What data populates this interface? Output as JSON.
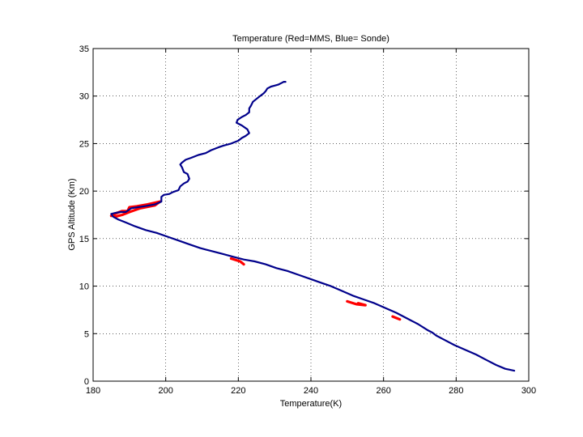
{
  "chart_data": {
    "type": "line",
    "title": "Temperature (Red=MMS, Blue= Sonde)",
    "xlabel": "Temperature(K)",
    "ylabel": "GPS Altitude (Km)",
    "xlim": [
      180,
      300
    ],
    "ylim": [
      0,
      35
    ],
    "xticks": [
      180,
      200,
      220,
      240,
      260,
      280,
      300
    ],
    "yticks": [
      0,
      5,
      10,
      15,
      20,
      25,
      30,
      35
    ],
    "grid": true,
    "series": [
      {
        "color": "#ff0000",
        "x": [
          185.0,
          186.5,
          188.0,
          189.5,
          190.0,
          192.0,
          195.0,
          198.5,
          197.0,
          193.0,
          190.0,
          188.0,
          186.0
        ],
        "y": [
          17.4,
          17.7,
          17.9,
          17.9,
          18.3,
          18.4,
          18.6,
          18.9,
          18.5,
          18.2,
          17.8,
          17.5,
          17.3
        ]
      },
      {
        "color": "#ff0000",
        "x": [
          218.0,
          220.5,
          221.5
        ],
        "y": [
          12.9,
          12.6,
          12.3
        ]
      },
      {
        "color": "#ff0000",
        "x": [
          250.0,
          252.5,
          255.0,
          253.0
        ],
        "y": [
          8.4,
          8.1,
          8.0,
          8.2
        ]
      },
      {
        "color": "#ff0000",
        "x": [
          262.5,
          264.5
        ],
        "y": [
          6.8,
          6.5
        ]
      },
      {
        "color": "#00008b",
        "x": [
          296.0,
          293.5,
          291.0,
          288.5,
          285.5,
          282.5,
          279.5,
          276.5,
          274.5,
          273.5,
          272.0,
          269.5,
          266.5,
          263.5,
          260.5,
          257.5,
          254.5,
          251.5,
          248.5,
          245.5,
          242.5,
          239.5,
          236.5,
          233.5,
          230.5,
          227.5,
          224.5,
          221.5,
          218.5,
          215.5,
          212.5,
          209.5,
          206.5,
          203.5,
          200.5,
          197.5,
          194.5,
          191.5,
          189.0,
          187.0,
          185.5,
          185.0,
          186.0,
          187.5,
          189.0,
          190.5,
          194.0,
          197.0,
          198.8,
          198.8,
          199.5,
          201.0,
          202.0,
          203.5,
          204.0,
          205.0,
          206.0,
          206.5,
          206.0,
          205.0,
          204.5,
          204.0,
          204.5,
          205.5,
          207.0,
          209.0,
          211.0,
          212.5,
          214.5,
          216.0,
          218.0,
          220.0,
          221.0,
          222.0,
          223.0,
          222.5,
          221.0,
          219.5,
          219.8,
          221.0,
          222.0,
          223.0,
          223.0,
          223.5,
          224.0,
          225.0,
          226.0,
          227.0,
          227.5,
          228.0,
          229.0,
          230.0,
          231.0,
          232.0,
          232.5,
          233.0
        ],
        "y": [
          1.1,
          1.3,
          1.7,
          2.2,
          2.8,
          3.3,
          3.8,
          4.4,
          4.8,
          5.1,
          5.4,
          6.0,
          6.6,
          7.2,
          7.7,
          8.2,
          8.6,
          9.0,
          9.5,
          10.0,
          10.4,
          10.8,
          11.2,
          11.6,
          11.9,
          12.3,
          12.6,
          12.8,
          13.1,
          13.4,
          13.7,
          14.0,
          14.4,
          14.8,
          15.2,
          15.6,
          15.9,
          16.3,
          16.7,
          17.0,
          17.3,
          17.6,
          17.7,
          17.8,
          17.8,
          18.2,
          18.4,
          18.6,
          18.9,
          19.4,
          19.6,
          19.7,
          19.9,
          20.1,
          20.5,
          20.8,
          21.0,
          21.3,
          21.8,
          22.0,
          22.5,
          22.8,
          23.0,
          23.3,
          23.5,
          23.8,
          24.0,
          24.3,
          24.6,
          24.8,
          25.0,
          25.3,
          25.6,
          25.8,
          26.1,
          26.5,
          26.9,
          27.2,
          27.5,
          27.8,
          28.0,
          28.3,
          28.7,
          29.0,
          29.4,
          29.7,
          30.0,
          30.3,
          30.5,
          30.8,
          31.0,
          31.1,
          31.2,
          31.4,
          31.5,
          31.5
        ]
      }
    ]
  }
}
